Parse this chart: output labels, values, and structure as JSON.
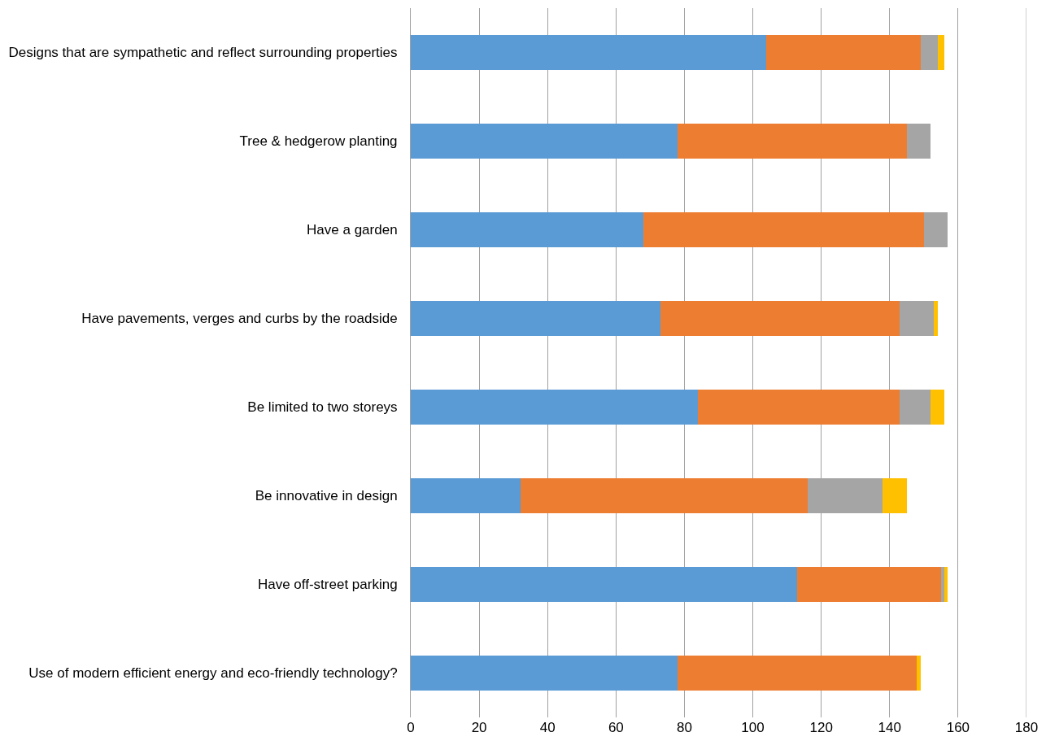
{
  "chart_data": {
    "type": "bar",
    "orientation": "horizontal",
    "stacked": true,
    "grid": "x",
    "categories": [
      "Designs that are sympathetic and reflect surrounding properties",
      "Tree & hedgerow planting",
      "Have a garden",
      "Have pavements, verges and curbs by the roadside",
      "Be limited to two storeys",
      "Be innovative in design",
      "Have off-street parking",
      "Use of modern efficient energy and eco-friendly technology?"
    ],
    "series": [
      {
        "color": "#5b9bd5",
        "values": [
          104,
          78,
          68,
          73,
          84,
          32,
          113,
          78
        ]
      },
      {
        "color": "#ed7d31",
        "values": [
          45,
          67,
          82,
          70,
          59,
          84,
          42,
          70
        ]
      },
      {
        "color": "#a5a5a5",
        "values": [
          5,
          7,
          7,
          10,
          9,
          22,
          1,
          null
        ]
      },
      {
        "color": "#ffc000",
        "values": [
          2,
          null,
          null,
          1,
          4,
          7,
          1,
          1
        ]
      }
    ],
    "xlim": [
      0,
      180
    ],
    "xticks": [
      0,
      20,
      40,
      60,
      80,
      100,
      120,
      140,
      160,
      180
    ]
  }
}
